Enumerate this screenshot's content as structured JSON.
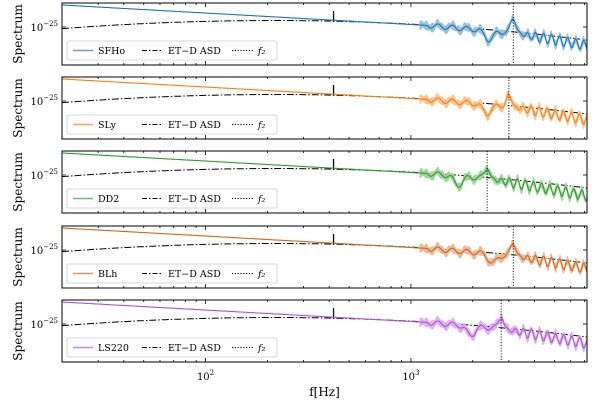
{
  "figure": {
    "ylabel": "Spectrum",
    "xlabel": "f[Hz]",
    "xticks": [
      {
        "value": 100,
        "label": "10^2"
      },
      {
        "value": 1000,
        "label": "10^3"
      }
    ],
    "ytick_label": "10^-25",
    "legend_asd": "ET−D ASD",
    "legend_f2": "f₂"
  },
  "chart_data": [
    {
      "type": "line",
      "series_name": "SFHo",
      "color": "#1f77b4",
      "f2_hz": 3150,
      "xlim": [
        20,
        7200
      ],
      "xscale": "log",
      "yscale": "log",
      "legend": "bottom-left",
      "peak_ratio": 1.2,
      "dip_hz": 2400
    },
    {
      "type": "line",
      "series_name": "SLy",
      "color": "#ff7f0e",
      "f2_hz": 3000,
      "xlim": [
        20,
        7200
      ],
      "xscale": "log",
      "yscale": "log",
      "legend": "bottom-right",
      "peak_ratio": 1.0,
      "dip_hz": 2350
    },
    {
      "type": "line",
      "series_name": "DD2",
      "color": "#2ca02c",
      "f2_hz": 2350,
      "xlim": [
        20,
        7200
      ],
      "xscale": "log",
      "yscale": "log",
      "legend": "bottom-left",
      "peak_ratio": 0.9,
      "dip_hz": 1700
    },
    {
      "type": "line",
      "series_name": "BLh",
      "color": "#d2691e",
      "f2_hz": 3150,
      "xlim": [
        20,
        7200
      ],
      "xscale": "log",
      "yscale": "log",
      "legend": "bottom-left",
      "peak_ratio": 1.0,
      "dip_hz": 2500
    },
    {
      "type": "line",
      "series_name": "LS220",
      "color": "#b64fe0",
      "f2_hz": 2750,
      "xlim": [
        20,
        7200
      ],
      "xscale": "log",
      "yscale": "log",
      "legend": "bottom-left",
      "peak_ratio": 1.0,
      "dip_hz": 1950
    }
  ]
}
